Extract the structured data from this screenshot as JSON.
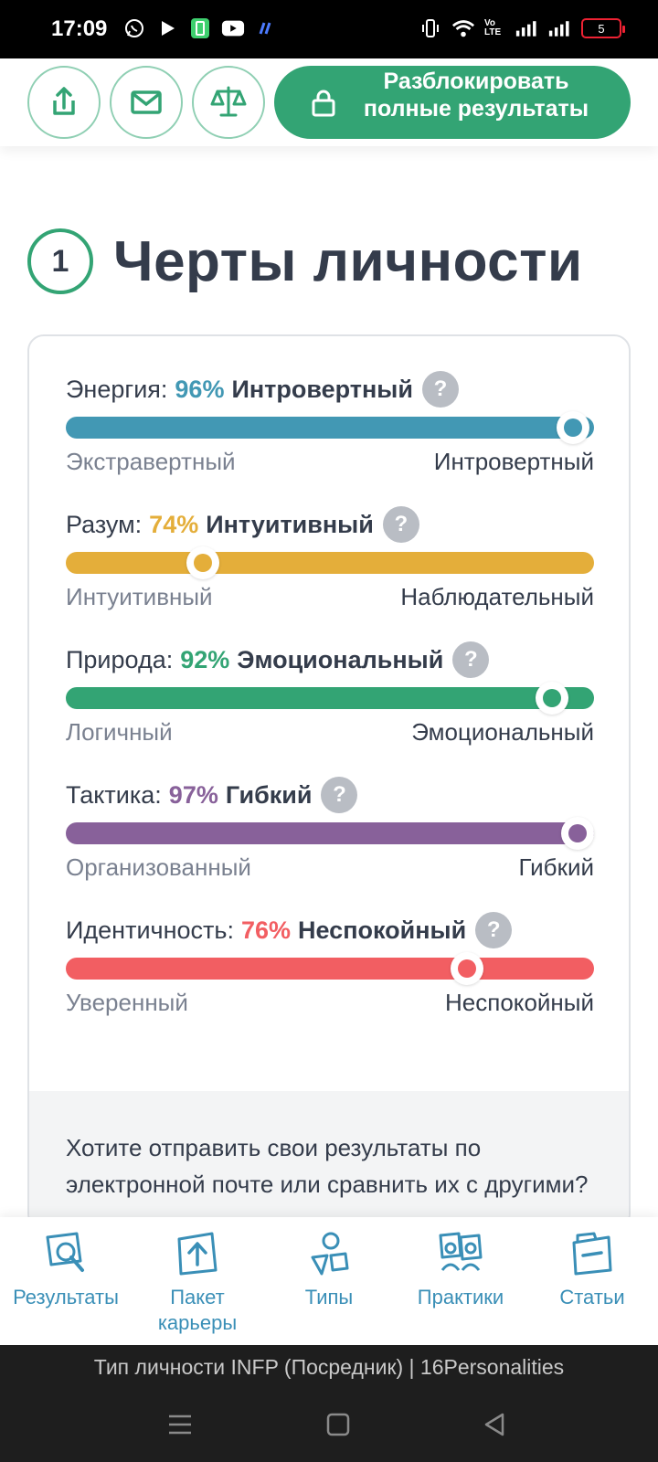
{
  "status_bar": {
    "time": "17:09",
    "battery": "5",
    "volte": "Vo LTE"
  },
  "action_bar": {
    "unlock_label": "Разблокировать полные результаты"
  },
  "section": {
    "number": "1",
    "title": "Черты личности"
  },
  "traits": [
    {
      "label": "Энергия:",
      "percent": "96%",
      "dominant": "Интровертный",
      "left": "Экстравертный",
      "right": "Интровертный",
      "position": 0.96,
      "color": "#4298b4"
    },
    {
      "label": "Разум:",
      "percent": "74%",
      "dominant": "Интуитивный",
      "left": "Интуитивный",
      "right": "Наблюдательный",
      "position": 0.26,
      "color": "#e4ae3a"
    },
    {
      "label": "Природа:",
      "percent": "92%",
      "dominant": "Эмоциональный",
      "left": "Логичный",
      "right": "Эмоциональный",
      "position": 0.92,
      "color": "#33a474"
    },
    {
      "label": "Тактика:",
      "percent": "97%",
      "dominant": "Гибкий",
      "left": "Организованный",
      "right": "Гибкий",
      "position": 0.97,
      "color": "#88619a"
    },
    {
      "label": "Идентичность:",
      "percent": "76%",
      "dominant": "Неспокойный",
      "left": "Уверенный",
      "right": "Неспокойный",
      "position": 0.76,
      "color": "#f25e62"
    }
  ],
  "card_footer": {
    "text": "Хотите отправить свои результаты по электронной почте или сравнить их с другими?"
  },
  "bottom_nav": [
    {
      "label": "Результаты",
      "icon": "results-icon"
    },
    {
      "label": "Пакет карьеры",
      "icon": "career-icon"
    },
    {
      "label": "Типы",
      "icon": "types-icon"
    },
    {
      "label": "Практики",
      "icon": "practices-icon"
    },
    {
      "label": "Статьи",
      "icon": "articles-icon"
    }
  ],
  "page_title": "Тип личности INFP (Посредник) | 16Personalities",
  "help_symbol": "?"
}
